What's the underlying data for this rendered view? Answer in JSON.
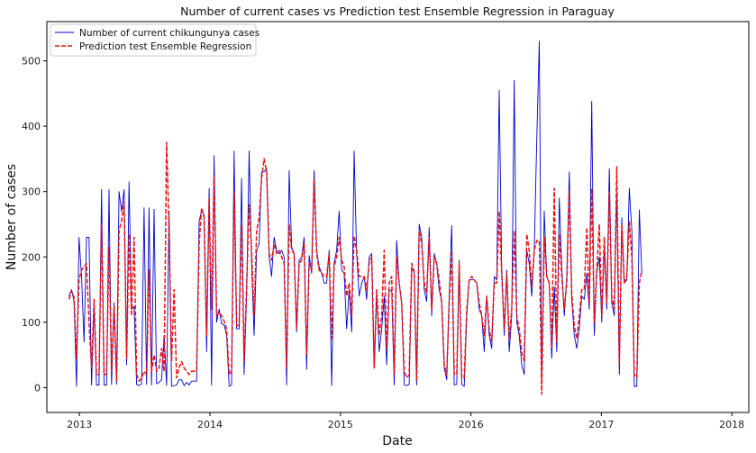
{
  "chart_data": {
    "type": "line",
    "title": "Number of current cases vs Prediction test Ensemble Regression in Paraguay",
    "xlabel": "Date",
    "ylabel": "Number of cases",
    "xlim": [
      2012.75,
      2018.13
    ],
    "ylim": [
      -38,
      560
    ],
    "x_ticks": [
      2013,
      2014,
      2015,
      2016,
      2017,
      2018
    ],
    "x_tick_labels": [
      "2013",
      "2014",
      "2015",
      "2016",
      "2017",
      "2018"
    ],
    "y_ticks": [
      0,
      100,
      200,
      300,
      400,
      500
    ],
    "y_tick_labels": [
      "0",
      "100",
      "200",
      "300",
      "400",
      "500"
    ],
    "legend_position": "top-left",
    "series": [
      {
        "name": "Number of current chikungunya cases",
        "color": "#0000cc",
        "style": "solid",
        "start": 2012.92,
        "step": 0.01917,
        "values": [
          140,
          150,
          132,
          2,
          230,
          170,
          70,
          230,
          230,
          4,
          125,
          4,
          4,
          303,
          4,
          4,
          303,
          5,
          130,
          5,
          300,
          270,
          303,
          35,
          315,
          120,
          124,
          5,
          3,
          6,
          275,
          5,
          275,
          4,
          273,
          6,
          8,
          12,
          80,
          3,
          270,
          2,
          3,
          4,
          12,
          12,
          3,
          8,
          4,
          10,
          10,
          10,
          255,
          270,
          265,
          55,
          305,
          4,
          355,
          100,
          120,
          98,
          96,
          80,
          2,
          4,
          362,
          90,
          90,
          320,
          20,
          140,
          362,
          190,
          80,
          210,
          220,
          330,
          330,
          335,
          200,
          170,
          230,
          210,
          205,
          210,
          200,
          4,
          332,
          215,
          205,
          85,
          195,
          200,
          230,
          28,
          202,
          175,
          332,
          210,
          185,
          175,
          160,
          160,
          210,
          3,
          190,
          210,
          270,
          180,
          175,
          90,
          150,
          85,
          362,
          205,
          140,
          160,
          170,
          135,
          200,
          205,
          30,
          145,
          55,
          90,
          140,
          35,
          148,
          150,
          4,
          225,
          160,
          130,
          4,
          3,
          5,
          180,
          180,
          4,
          250,
          230,
          150,
          132,
          245,
          110,
          205,
          190,
          150,
          130,
          30,
          12,
          140,
          248,
          4,
          5,
          195,
          5,
          2,
          110,
          165,
          165,
          165,
          160,
          120,
          110,
          55,
          140,
          80,
          60,
          170,
          165,
          455,
          180,
          80,
          180,
          55,
          110,
          470,
          100,
          80,
          35,
          20,
          210,
          190,
          140,
          210,
          380,
          530,
          5,
          270,
          170,
          160,
          45,
          155,
          55,
          290,
          185,
          110,
          170,
          330,
          135,
          80,
          60,
          90,
          140,
          135,
          175,
          120,
          438,
          80,
          175,
          200,
          100,
          215,
          120,
          335,
          130,
          110,
          300,
          20,
          260,
          160,
          165,
          305,
          240,
          2,
          2,
          272,
          175
        ]
      },
      {
        "name": "Prediction test Ensemble Regression",
        "color": "#ee1111",
        "style": "dashed",
        "start": 2012.92,
        "step": 0.01917,
        "values": [
          135,
          148,
          138,
          45,
          165,
          180,
          185,
          190,
          100,
          30,
          135,
          20,
          20,
          250,
          20,
          20,
          215,
          25,
          125,
          10,
          240,
          255,
          285,
          45,
          235,
          110,
          230,
          20,
          10,
          15,
          25,
          20,
          180,
          25,
          50,
          25,
          30,
          60,
          25,
          375,
          245,
          40,
          150,
          15,
          30,
          40,
          30,
          25,
          20,
          25,
          25,
          25,
          220,
          275,
          260,
          80,
          290,
          120,
          325,
          110,
          115,
          110,
          102,
          90,
          20,
          25,
          300,
          95,
          95,
          250,
          40,
          155,
          280,
          210,
          110,
          240,
          260,
          320,
          350,
          330,
          205,
          195,
          220,
          205,
          210,
          200,
          190,
          30,
          250,
          210,
          205,
          90,
          190,
          195,
          220,
          50,
          190,
          180,
          320,
          205,
          180,
          175,
          170,
          170,
          205,
          75,
          185,
          200,
          230,
          195,
          185,
          140,
          160,
          110,
          232,
          210,
          170,
          170,
          170,
          150,
          190,
          200,
          30,
          150,
          80,
          110,
          210,
          60,
          160,
          170,
          20,
          200,
          160,
          130,
          25,
          15,
          20,
          190,
          175,
          10,
          240,
          220,
          160,
          145,
          230,
          120,
          200,
          190,
          165,
          130,
          35,
          20,
          130,
          210,
          20,
          20,
          190,
          15,
          15,
          120,
          165,
          170,
          165,
          160,
          130,
          110,
          80,
          140,
          90,
          70,
          160,
          160,
          270,
          175,
          90,
          175,
          75,
          120,
          240,
          110,
          90,
          55,
          40,
          235,
          210,
          155,
          210,
          225,
          225,
          -10,
          230,
          170,
          160,
          60,
          305,
          70,
          235,
          170,
          120,
          160,
          300,
          145,
          95,
          75,
          110,
          150,
          150,
          245,
          130,
          305,
          100,
          180,
          250,
          110,
          230,
          130,
          300,
          140,
          120,
          338,
          35,
          250,
          160,
          170,
          255,
          200,
          20,
          15,
          160,
          180
        ]
      }
    ]
  }
}
